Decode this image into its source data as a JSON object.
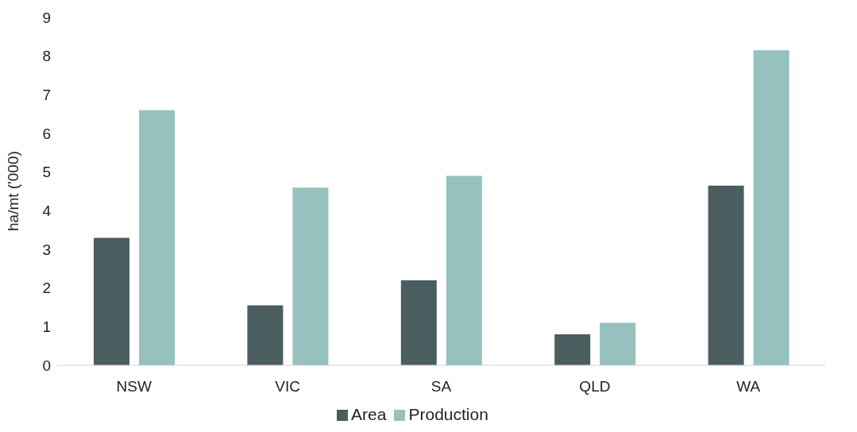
{
  "chart_data": {
    "type": "bar",
    "ylabel": "ha/mt ('000)",
    "categories": [
      "NSW",
      "VIC",
      "SA",
      "QLD",
      "WA"
    ],
    "series": [
      {
        "name": "Area",
        "color": "#4b5e5f",
        "values": [
          3.3,
          1.55,
          2.2,
          0.8,
          4.65
        ]
      },
      {
        "name": "Production",
        "color": "#96c1be",
        "values": [
          6.6,
          4.6,
          4.9,
          1.1,
          8.15
        ]
      }
    ],
    "ylim": [
      0,
      9
    ],
    "yticks": [
      0,
      1,
      2,
      3,
      4,
      5,
      6,
      7,
      8,
      9
    ],
    "grid": false,
    "legend": "bottom"
  }
}
